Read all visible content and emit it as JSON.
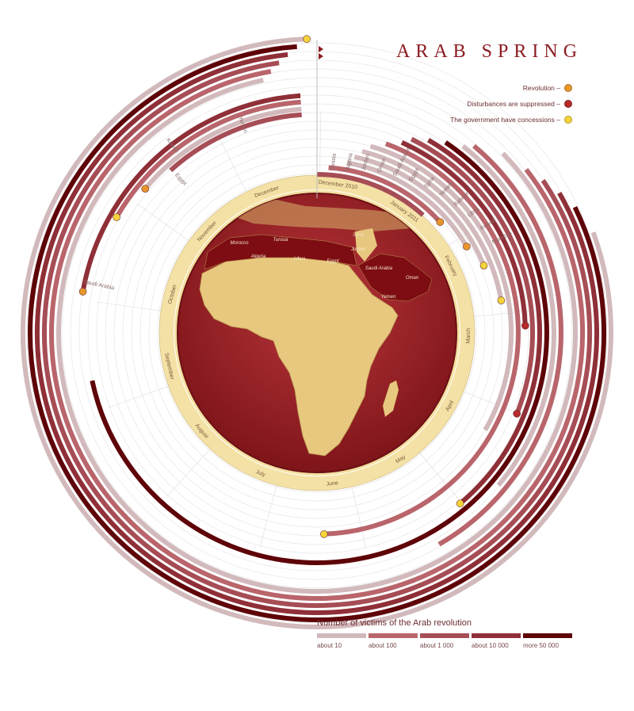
{
  "title": "ARAB SPRING",
  "legend": [
    {
      "label": "Revolution –",
      "color": "#e8962c"
    },
    {
      "label": "Disturbances are suppressed –",
      "color": "#b52a2a"
    },
    {
      "label": "The government have concessions –",
      "color": "#f5d33a"
    }
  ],
  "victims": {
    "title": "Number of victims of the Arab revolution",
    "levels": [
      {
        "label": "about 10",
        "color": "#d2b9bb"
      },
      {
        "label": "about 100",
        "color": "#b9656b"
      },
      {
        "label": "about 1 000",
        "color": "#a64d55"
      },
      {
        "label": "about 10 000",
        "color": "#8f2f37"
      },
      {
        "label": "more 50 000",
        "color": "#5e0408"
      }
    ]
  },
  "months": [
    "December 2010",
    "January 2011",
    "February",
    "March",
    "April",
    "May",
    "June",
    "July",
    "August",
    "September",
    "October",
    "November",
    "December"
  ],
  "inner_countries": [
    "Tunisia",
    "Algeria",
    "Jordan",
    "Oman",
    "Saudi Arabia",
    "Egypt",
    "Syria",
    "Yemen",
    "Bahrain",
    "Libya",
    "Kuwait",
    "Morocco"
  ],
  "outer_countries": [
    "Yemen",
    "Kuwait",
    "Egypt",
    "Saudi Arabia"
  ],
  "map_labels": [
    "Morocco",
    "Tunisia",
    "Algeria",
    "Libya",
    "Egypt",
    "Syria",
    "Jordan",
    "Saudi Arabia",
    "Oman",
    "Yemen"
  ],
  "colors": {
    "accent": "#8c1c22",
    "ring": "#f4e1a6",
    "globe": "#9e2329",
    "land": "#e8c77e"
  }
}
